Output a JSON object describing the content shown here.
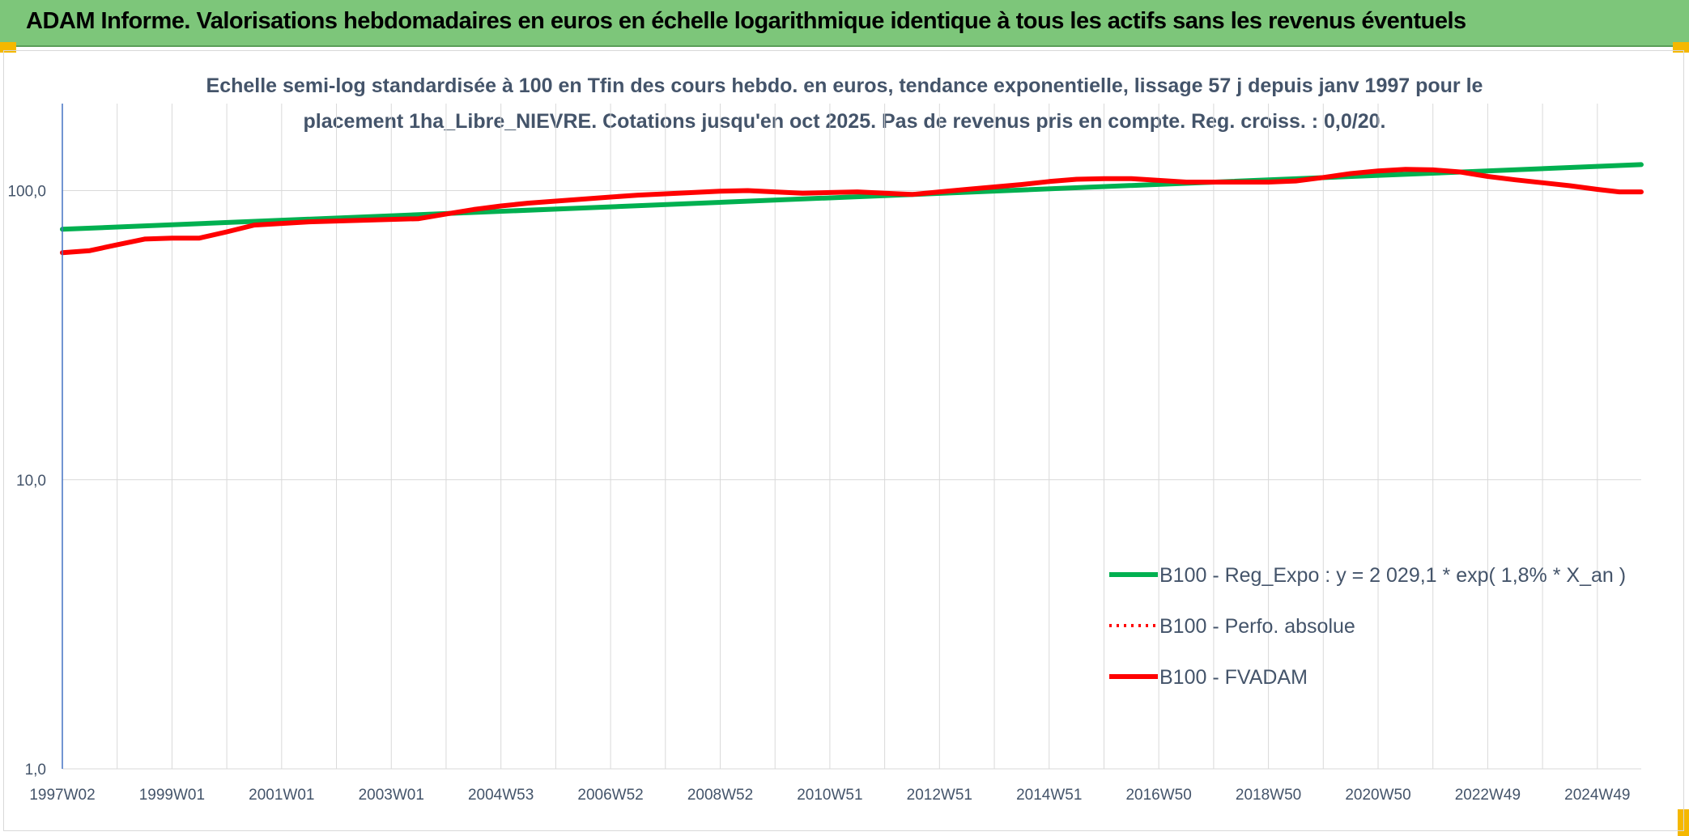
{
  "header": {
    "title": "ADAM Informe. Valorisations hebdomadaires en euros en échelle logarithmique identique à tous les actifs sans les revenus éventuels"
  },
  "colors": {
    "header_bg": "#7dc67a",
    "corner": "#f5b800",
    "trend": "#00b050",
    "fvadam": "#ff0000",
    "grid": "#d9d9d9",
    "axis": "#4472c4",
    "text": "#44546a"
  },
  "chart_data": {
    "type": "line",
    "title_lines": [
      "Echelle semi-log standardisée à 100 en Tfin des cours hebdo. en euros, tendance exponentielle, lissage 57 j depuis janv 1997 pour le",
      "placement 1ha_Libre_NIEVRE. Cotations jusqu'en oct 2025. Pas de revenus pris en compte. Reg. croiss. : 0,0/20."
    ],
    "yscale": "log",
    "ylim": [
      1,
      200
    ],
    "y_ticks": [
      {
        "value": 1,
        "label": "1,0"
      },
      {
        "value": 10,
        "label": "10,0"
      },
      {
        "value": 100,
        "label": "100,0"
      }
    ],
    "xlim": [
      1997.0,
      2025.8
    ],
    "x_ticks": [
      {
        "value": 1997.0,
        "label": "1997W02"
      },
      {
        "value": 1999.0,
        "label": "1999W01"
      },
      {
        "value": 2001.0,
        "label": "2001W01"
      },
      {
        "value": 2003.0,
        "label": "2003W01"
      },
      {
        "value": 2005.0,
        "label": "2004W53"
      },
      {
        "value": 2007.0,
        "label": "2006W52"
      },
      {
        "value": 2009.0,
        "label": "2008W52"
      },
      {
        "value": 2011.0,
        "label": "2010W51"
      },
      {
        "value": 2013.0,
        "label": "2012W51"
      },
      {
        "value": 2015.0,
        "label": "2014W51"
      },
      {
        "value": 2017.0,
        "label": "2016W50"
      },
      {
        "value": 2019.0,
        "label": "2018W50"
      },
      {
        "value": 2021.0,
        "label": "2020W50"
      },
      {
        "value": 2023.0,
        "label": "2022W49"
      },
      {
        "value": 2025.0,
        "label": "2024W49"
      }
    ],
    "legend_position": "bottom-right",
    "series": [
      {
        "name": "B100 - Reg_Expo : y = 2 029,1 * exp( 1,8% *  X_an )",
        "style": "solid",
        "x": [
          1997.0,
          2025.8
        ],
        "y": [
          73.5,
          123
        ]
      },
      {
        "name": "B100 - Perfo. absolue",
        "style": "dotted",
        "x": [],
        "y": []
      },
      {
        "name": "B100 - FVADAM",
        "style": "solid",
        "x": [
          1997.0,
          1997.5,
          1998.0,
          1998.5,
          1999.0,
          1999.5,
          2000.0,
          2000.5,
          2001.0,
          2001.5,
          2002.0,
          2002.5,
          2003.0,
          2003.5,
          2004.0,
          2004.5,
          2005.0,
          2005.5,
          2006.0,
          2006.5,
          2007.0,
          2007.5,
          2008.0,
          2008.5,
          2009.0,
          2009.5,
          2010.0,
          2010.5,
          2011.0,
          2011.5,
          2012.0,
          2012.5,
          2013.0,
          2013.5,
          2014.0,
          2014.5,
          2015.0,
          2015.5,
          2016.0,
          2016.5,
          2017.0,
          2017.5,
          2018.0,
          2018.5,
          2019.0,
          2019.5,
          2020.0,
          2020.5,
          2021.0,
          2021.5,
          2022.0,
          2022.5,
          2023.0,
          2023.5,
          2024.0,
          2024.5,
          2025.0,
          2025.4,
          2025.8
        ],
        "y": [
          61,
          62,
          65,
          68,
          68.5,
          68.5,
          72,
          76,
          77,
          78,
          78.5,
          79,
          79.5,
          80,
          83,
          86,
          88.5,
          90.5,
          92,
          93.5,
          95,
          96.5,
          97.5,
          98.5,
          99.5,
          100,
          99,
          98,
          98.5,
          99,
          98,
          97,
          99,
          101,
          103,
          105,
          107.5,
          109.5,
          110,
          110,
          108.5,
          107,
          107,
          107,
          107,
          108,
          111,
          114.5,
          117,
          118.5,
          118,
          116,
          112,
          109,
          106.5,
          104,
          101,
          99,
          99
        ]
      }
    ]
  }
}
